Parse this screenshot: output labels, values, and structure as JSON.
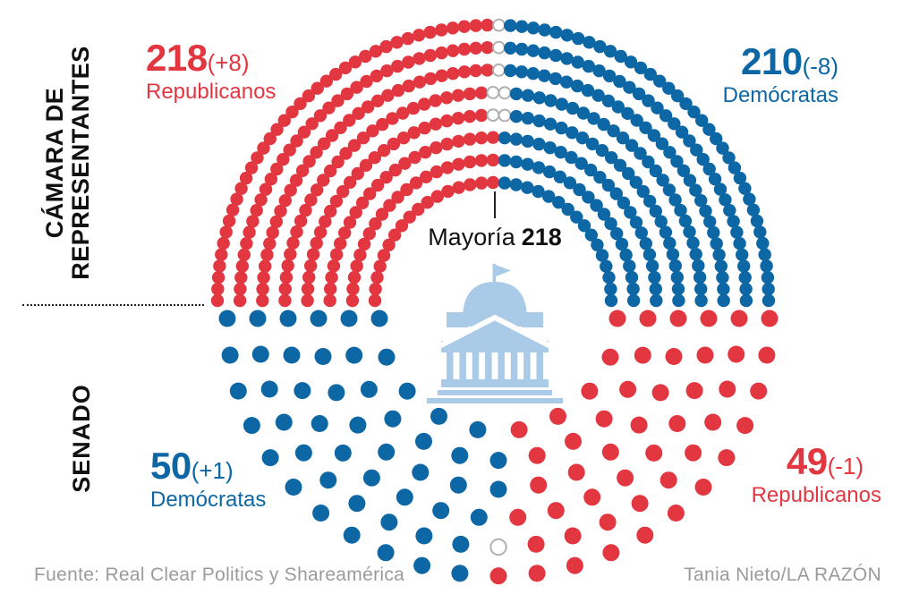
{
  "colors": {
    "republican": "#E23740",
    "democrat": "#0D67A5",
    "undecided_stroke": "#B0B0B0",
    "capitol": "#A9CBE8",
    "text_dark": "#111111",
    "muted": "#9B9B9B"
  },
  "sections": {
    "house": {
      "axis_label_line1": "CÁMARA DE",
      "axis_label_line2": "REPRESENTANTES"
    },
    "senate": {
      "axis_label": "SENADO"
    }
  },
  "labels": {
    "house_rep": {
      "value": "218",
      "change": "(+8)",
      "party": "Republicanos"
    },
    "house_dem": {
      "value": "210",
      "change": "(-8)",
      "party": "Demócratas"
    },
    "majority": {
      "label": "Mayoría",
      "value": "218"
    },
    "senate_dem": {
      "value": "50",
      "change": "(+1)",
      "party": "Demócratas"
    },
    "senate_rep": {
      "value": "49",
      "change": "(-1)",
      "party": "Republicanos"
    }
  },
  "footer": {
    "source": "Fuente: Real Clear Politics y Shareamérica",
    "credit": "Tania Nieto/LA RAZÓN"
  },
  "chart_data": [
    {
      "type": "parliament-dot",
      "chamber": "Cámara de Representantes",
      "total_seats": 435,
      "majority": 218,
      "rows": 8,
      "orientation": "top-hemicycle",
      "series": [
        {
          "name": "Republicanos",
          "seats": 218,
          "change": 8,
          "color_key": "republican"
        },
        {
          "name": "undecided",
          "seats": 7,
          "change": 0,
          "color_key": "undecided"
        },
        {
          "name": "Demócratas",
          "seats": 210,
          "change": -8,
          "color_key": "democrat"
        }
      ]
    },
    {
      "type": "parliament-dot",
      "chamber": "Senado",
      "total_seats": 100,
      "rows": 6,
      "orientation": "bottom-hemicycle",
      "series": [
        {
          "name": "Demócratas",
          "seats": 50,
          "change": 1,
          "color_key": "democrat"
        },
        {
          "name": "undecided",
          "seats": 1,
          "change": 0,
          "color_key": "undecided"
        },
        {
          "name": "Republicanos",
          "seats": 49,
          "change": -1,
          "color_key": "republican"
        }
      ]
    }
  ]
}
